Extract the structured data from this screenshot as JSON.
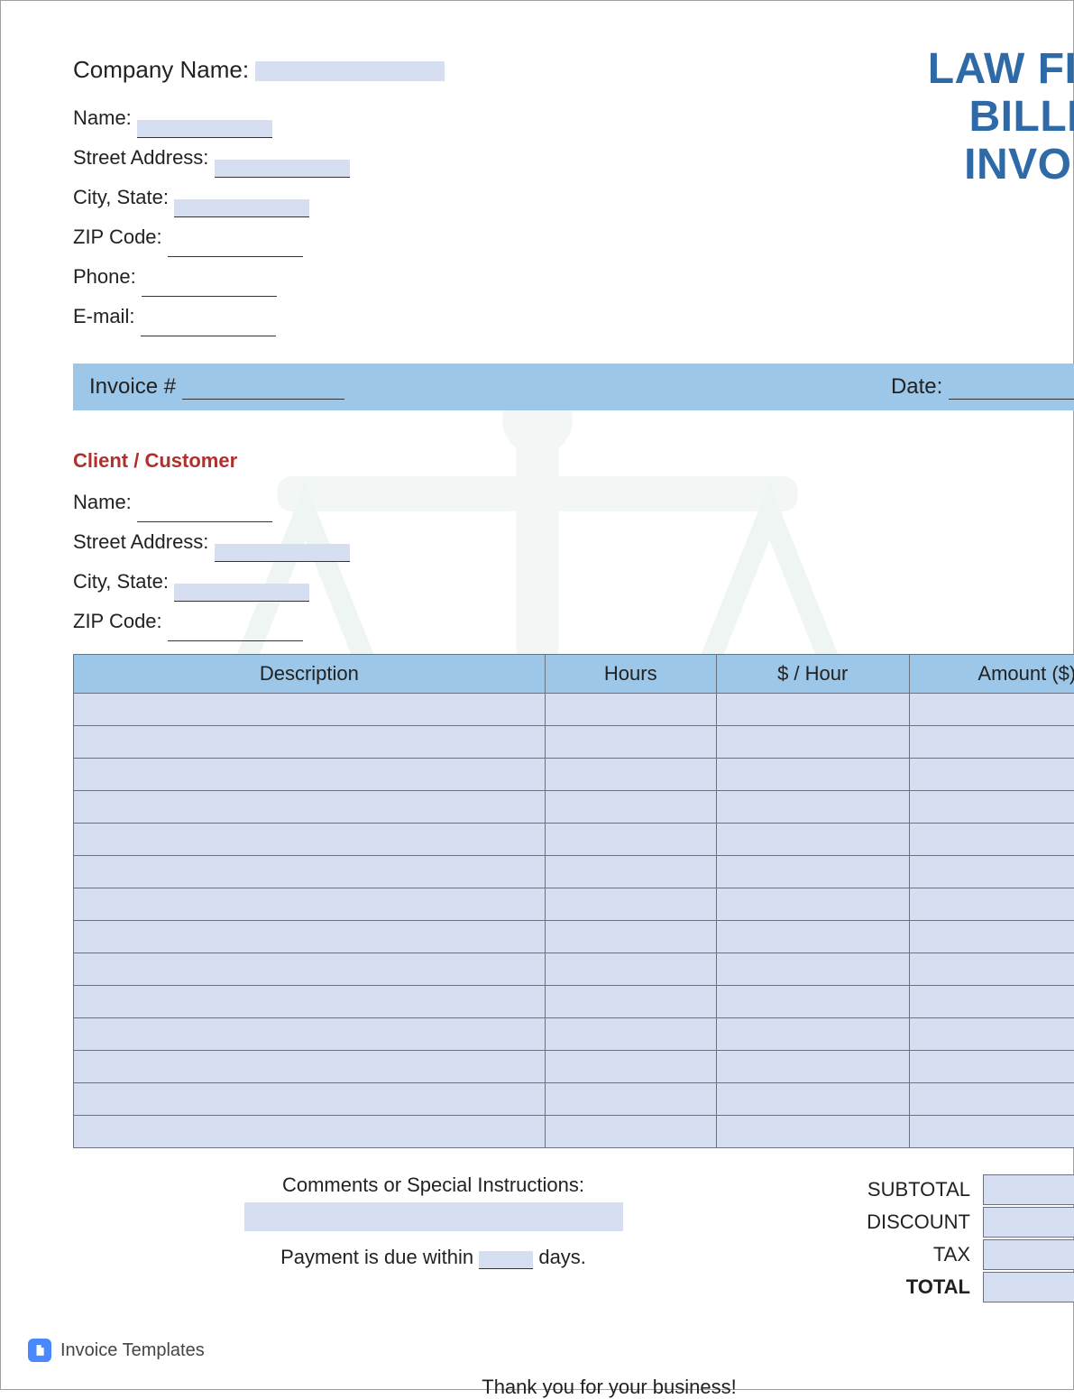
{
  "title": {
    "line1": "LAW FIRM",
    "line2": "BILLING",
    "line3": "INVOICE",
    "color": "#2f6aa8",
    "font_size": 48
  },
  "company": {
    "heading": "Company Name:",
    "fields": {
      "name": "Name:",
      "street": "Street Address:",
      "city_state": "City, State:",
      "zip": "ZIP Code:",
      "phone": "Phone:",
      "email": "E-mail:"
    }
  },
  "invoice_bar": {
    "number_label": "Invoice #",
    "date_label": "Date:"
  },
  "client": {
    "heading": "Client / Customer",
    "fields": {
      "name": "Name:",
      "street": "Street Address:",
      "city_state": "City, State:",
      "zip": "ZIP Code:"
    }
  },
  "table": {
    "columns": {
      "description": "Description",
      "hours": "Hours",
      "rate": "$ / Hour",
      "amount": "Amount ($)"
    },
    "row_count": 14,
    "header_bg": "#9cc7e8",
    "cell_bg": "#d6def2",
    "border_color": "#6b7280"
  },
  "comments": {
    "heading": "Comments or Special Instructions:",
    "payment_prefix": "Payment is due within",
    "payment_suffix": "days."
  },
  "totals": {
    "subtotal": "SUBTOTAL",
    "discount": "DISCOUNT",
    "tax": "TAX",
    "total": "TOTAL"
  },
  "thanks": "Thank you for your business!",
  "footer": {
    "brand": "Invoice Templates",
    "icon_color": "#4a88ff"
  },
  "watermark": {
    "type": "scales-of-justice",
    "stroke": "#a9cdbf",
    "fill": "#bdd8cd",
    "opacity": 0.18
  },
  "highlight_color": "#d6def2",
  "bar_color": "#9cc7e8"
}
